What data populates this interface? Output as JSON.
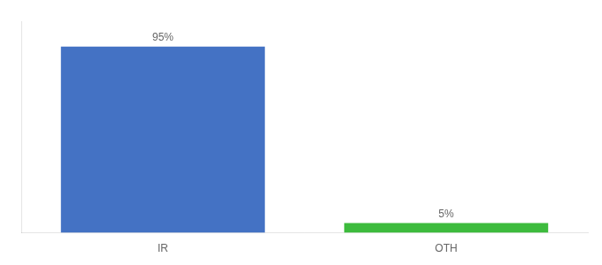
{
  "chart_data": {
    "type": "bar",
    "categories": [
      "IR",
      "OTH"
    ],
    "values": [
      95,
      5
    ],
    "value_labels": [
      "95%",
      "5%"
    ],
    "data_labels": true,
    "colors": [
      "#4472c4",
      "#3dbb3d"
    ],
    "ylim": [
      0,
      108
    ],
    "grid": false,
    "tick_labels": "x"
  }
}
